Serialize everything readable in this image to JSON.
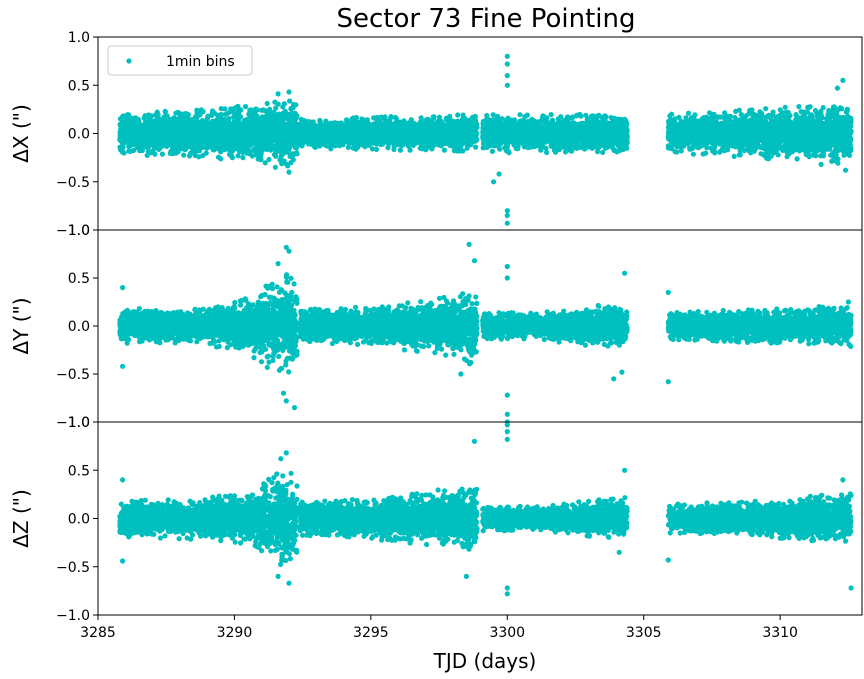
{
  "chart_data": {
    "type": "scatter",
    "title": "Sector 73 Fine Pointing",
    "xlabel": "TJD (days)",
    "xlim": [
      3285,
      3313
    ],
    "xticks": [
      3285,
      3290,
      3295,
      3300,
      3305,
      3310
    ],
    "color": "#00bfbf",
    "legend": {
      "label": "1min bins",
      "placement": "top-left"
    },
    "segments": [
      [
        3285.8,
        3292.3
      ],
      [
        3292.4,
        3298.9
      ],
      [
        3299.1,
        3304.4
      ],
      [
        3305.9,
        3312.6
      ]
    ],
    "panels": [
      {
        "name": "dx",
        "ylabel": "ΔX (\")",
        "ylim": [
          -1.0,
          1.0
        ],
        "yticks": [
          -1.0,
          -0.5,
          0.0,
          0.5,
          1.0
        ],
        "band": [
          [
            3285.8,
            0.22
          ],
          [
            3289.0,
            0.25
          ],
          [
            3292.2,
            0.35
          ],
          [
            3292.4,
            0.15
          ],
          [
            3298.9,
            0.2
          ],
          [
            3299.1,
            0.2
          ],
          [
            3304.4,
            0.2
          ],
          [
            3305.9,
            0.2
          ],
          [
            3309.0,
            0.25
          ],
          [
            3312.6,
            0.33
          ]
        ],
        "outliers": [
          [
            3300.0,
            0.8
          ],
          [
            3300.0,
            0.72
          ],
          [
            3300.0,
            0.6
          ],
          [
            3300.0,
            0.5
          ],
          [
            3300.0,
            -0.8
          ],
          [
            3300.0,
            -0.85
          ],
          [
            3300.0,
            -0.93
          ],
          [
            3299.5,
            -0.5
          ],
          [
            3299.7,
            -0.42
          ],
          [
            3312.3,
            0.55
          ],
          [
            3312.1,
            0.47
          ],
          [
            3292.0,
            0.43
          ],
          [
            3291.6,
            0.41
          ],
          [
            3292.0,
            -0.4
          ],
          [
            3291.5,
            -0.35
          ],
          [
            3312.4,
            -0.38
          ],
          [
            3311.5,
            -0.32
          ]
        ]
      },
      {
        "name": "dy",
        "ylabel": "ΔY (\")",
        "ylim": [
          -1.0,
          1.0
        ],
        "yticks": [
          -1.0,
          -0.5,
          0.0,
          0.5,
          1.0
        ],
        "band": [
          [
            3285.8,
            0.18
          ],
          [
            3289.0,
            0.2
          ],
          [
            3290.5,
            0.3
          ],
          [
            3291.8,
            0.55
          ],
          [
            3292.3,
            0.5
          ],
          [
            3292.4,
            0.18
          ],
          [
            3295.0,
            0.2
          ],
          [
            3297.5,
            0.3
          ],
          [
            3298.9,
            0.42
          ],
          [
            3299.1,
            0.14
          ],
          [
            3301.0,
            0.14
          ],
          [
            3304.4,
            0.25
          ],
          [
            3305.9,
            0.15
          ],
          [
            3309.0,
            0.18
          ],
          [
            3312.6,
            0.22
          ]
        ],
        "outliers": [
          [
            3291.9,
            0.82
          ],
          [
            3292.0,
            0.78
          ],
          [
            3291.6,
            0.65
          ],
          [
            3292.2,
            -0.85
          ],
          [
            3291.9,
            -0.78
          ],
          [
            3291.8,
            -0.7
          ],
          [
            3298.6,
            0.85
          ],
          [
            3298.8,
            0.68
          ],
          [
            3300.0,
            0.62
          ],
          [
            3300.0,
            0.5
          ],
          [
            3300.0,
            -0.72
          ],
          [
            3300.0,
            -0.92
          ],
          [
            3300.0,
            -1.0
          ],
          [
            3285.9,
            0.4
          ],
          [
            3285.9,
            -0.42
          ],
          [
            3304.3,
            0.55
          ],
          [
            3304.2,
            -0.48
          ],
          [
            3305.9,
            -0.58
          ],
          [
            3305.9,
            0.35
          ],
          [
            3312.5,
            0.25
          ],
          [
            3298.3,
            -0.5
          ],
          [
            3303.9,
            -0.55
          ]
        ]
      },
      {
        "name": "dz",
        "ylabel": "ΔZ (\")",
        "ylim": [
          -1.0,
          1.0
        ],
        "yticks": [
          -1.0,
          -0.5,
          0.0,
          0.5,
          1.0
        ],
        "band": [
          [
            3285.8,
            0.2
          ],
          [
            3289.0,
            0.22
          ],
          [
            3290.5,
            0.3
          ],
          [
            3291.8,
            0.5
          ],
          [
            3292.3,
            0.45
          ],
          [
            3292.4,
            0.18
          ],
          [
            3295.0,
            0.22
          ],
          [
            3297.5,
            0.3
          ],
          [
            3298.9,
            0.38
          ],
          [
            3299.1,
            0.13
          ],
          [
            3301.0,
            0.13
          ],
          [
            3304.4,
            0.22
          ],
          [
            3305.9,
            0.15
          ],
          [
            3309.0,
            0.18
          ],
          [
            3312.6,
            0.27
          ]
        ],
        "outliers": [
          [
            3291.9,
            0.68
          ],
          [
            3291.7,
            0.62
          ],
          [
            3292.0,
            -0.67
          ],
          [
            3291.6,
            -0.6
          ],
          [
            3298.8,
            0.8
          ],
          [
            3300.0,
            0.97
          ],
          [
            3300.0,
            0.9
          ],
          [
            3300.0,
            0.82
          ],
          [
            3300.0,
            -0.78
          ],
          [
            3300.0,
            -0.72
          ],
          [
            3285.9,
            0.4
          ],
          [
            3285.9,
            -0.44
          ],
          [
            3312.6,
            -0.72
          ],
          [
            3312.3,
            0.4
          ],
          [
            3304.3,
            0.5
          ],
          [
            3305.9,
            -0.43
          ],
          [
            3298.5,
            -0.6
          ],
          [
            3304.1,
            -0.35
          ]
        ]
      }
    ]
  }
}
